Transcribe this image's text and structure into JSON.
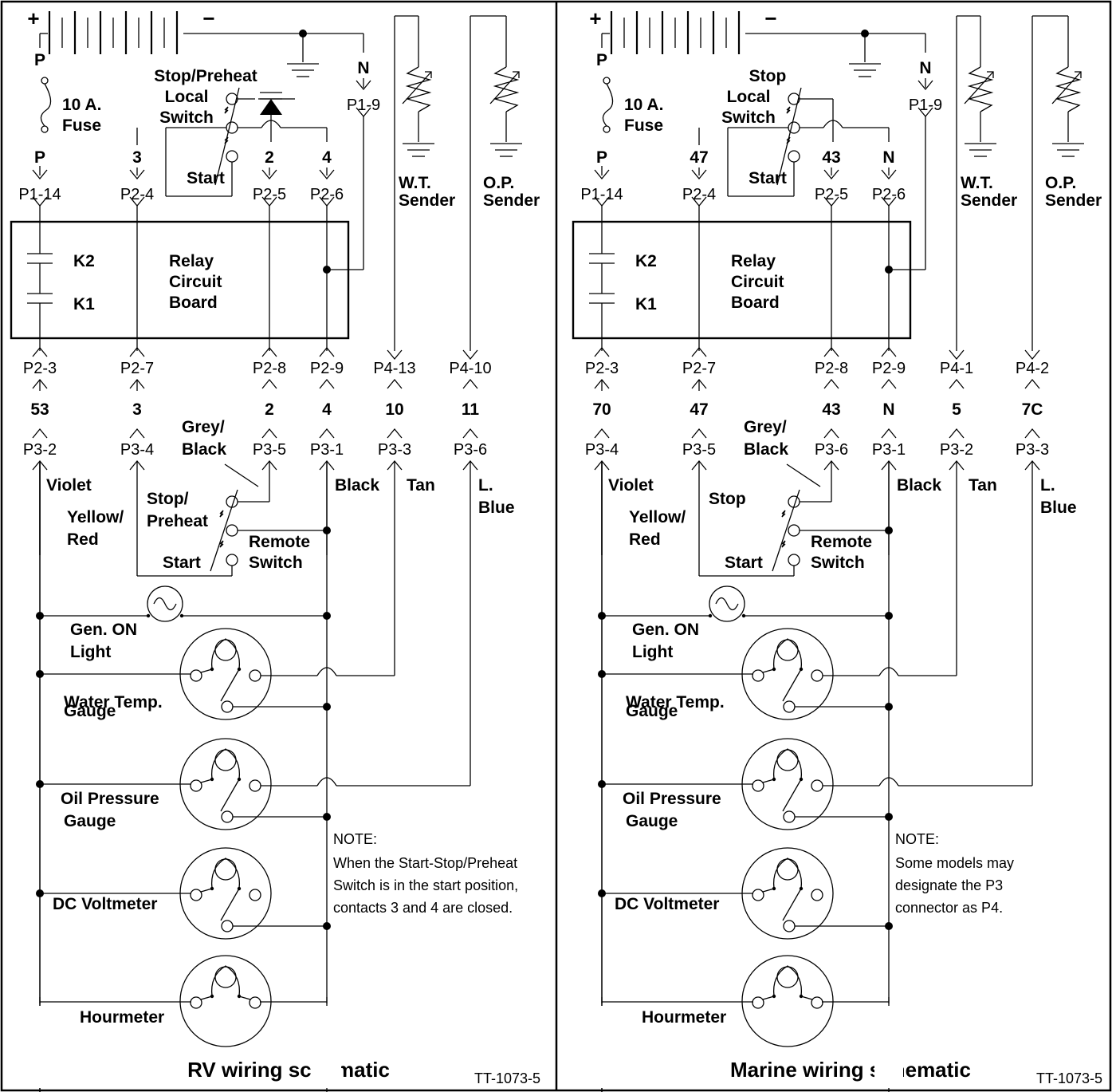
{
  "panels": [
    {
      "battery": {
        "plus": "+",
        "minus": "−"
      },
      "wire_p_top": "P",
      "wire_p_bottom": "P",
      "fuse": [
        "10 A.",
        "Fuse"
      ],
      "switch_local": [
        "Stop/Preheat",
        "Local",
        "Switch"
      ],
      "switch_local_start": "Start",
      "wire_n": "N",
      "conn_p1_9": "P1-9",
      "wires_top": [
        "3",
        "2",
        "4"
      ],
      "conn_top": [
        "P1-14",
        "P2-4",
        "P2-5",
        "P2-6"
      ],
      "senders": [
        [
          "W.T.",
          "Sender"
        ],
        [
          "O.P.",
          "Sender"
        ]
      ],
      "relay": {
        "k2": "K2",
        "k1": "K1",
        "label": [
          "Relay",
          "Circuit",
          "Board"
        ]
      },
      "conn_mid": [
        "P2-3",
        "P2-7",
        "P2-8",
        "P2-9",
        "P4-13",
        "P4-10"
      ],
      "wires_mid": [
        "53",
        "3",
        "2",
        "4",
        "10",
        "11"
      ],
      "conn_bot": [
        "P3-2",
        "P3-4",
        "P3-5",
        "P3-1",
        "P3-3",
        "P3-6"
      ],
      "grey_black": [
        "Grey/",
        "Black"
      ],
      "colors": [
        "Violet",
        "Black",
        "Tan",
        "L.",
        "Blue"
      ],
      "yellow_red": [
        "Yellow/",
        "Red"
      ],
      "remote_stop": [
        "Stop/",
        "Preheat"
      ],
      "remote_start": "Start",
      "remote_switch": [
        "Remote",
        "Switch"
      ],
      "gen_on": [
        "Gen. ON",
        "Light"
      ],
      "water_temp": [
        "Water Temp.",
        "Gauge"
      ],
      "oil_pressure": [
        "Oil Pressure",
        "Gauge"
      ],
      "voltmeter": "DC Voltmeter",
      "hourmeter": "Hourmeter",
      "note": [
        "NOTE:",
        "When the Start-Stop/Preheat",
        "Switch is in the start position,",
        "contacts 3 and 4 are closed."
      ],
      "title": "RV wiring schematic",
      "code": "TT-1073-5"
    },
    {
      "battery": {
        "plus": "+",
        "minus": "−"
      },
      "wire_p_top": "P",
      "wire_p_bottom": "P",
      "fuse": [
        "10 A.",
        "Fuse"
      ],
      "switch_local": [
        "Stop",
        "Local",
        "Switch"
      ],
      "switch_local_start": "Start",
      "wire_n": "N",
      "conn_p1_9": "P1-9",
      "wires_top": [
        "47",
        "43",
        "N"
      ],
      "conn_top": [
        "P1-14",
        "P2-4",
        "P2-5",
        "P2-6"
      ],
      "senders": [
        [
          "W.T.",
          "Sender"
        ],
        [
          "O.P.",
          "Sender"
        ]
      ],
      "relay": {
        "k2": "K2",
        "k1": "K1",
        "label": [
          "Relay",
          "Circuit",
          "Board"
        ]
      },
      "conn_mid": [
        "P2-3",
        "P2-7",
        "P2-8",
        "P2-9",
        "P4-1",
        "P4-2"
      ],
      "wires_mid": [
        "70",
        "47",
        "43",
        "N",
        "5",
        "7C"
      ],
      "conn_bot": [
        "P3-4",
        "P3-5",
        "P3-6",
        "P3-1",
        "P3-2",
        "P3-3"
      ],
      "grey_black": [
        "Grey/",
        "Black"
      ],
      "colors": [
        "Violet",
        "Black",
        "Tan",
        "L.",
        "Blue"
      ],
      "yellow_red": [
        "Yellow/",
        "Red"
      ],
      "remote_stop": [
        "Stop",
        ""
      ],
      "remote_start": "Start",
      "remote_switch": [
        "Remote",
        "Switch"
      ],
      "gen_on": [
        "Gen. ON",
        "Light"
      ],
      "water_temp": [
        "Water Temp.",
        "Gauge"
      ],
      "oil_pressure": [
        "Oil Pressure",
        "Gauge"
      ],
      "voltmeter": "DC Voltmeter",
      "hourmeter": "Hourmeter",
      "note": [
        "NOTE:",
        "Some models may",
        "designate the P3",
        "connector as P4."
      ],
      "title": "Marine wiring schematic",
      "code": "TT-1073-5"
    }
  ]
}
